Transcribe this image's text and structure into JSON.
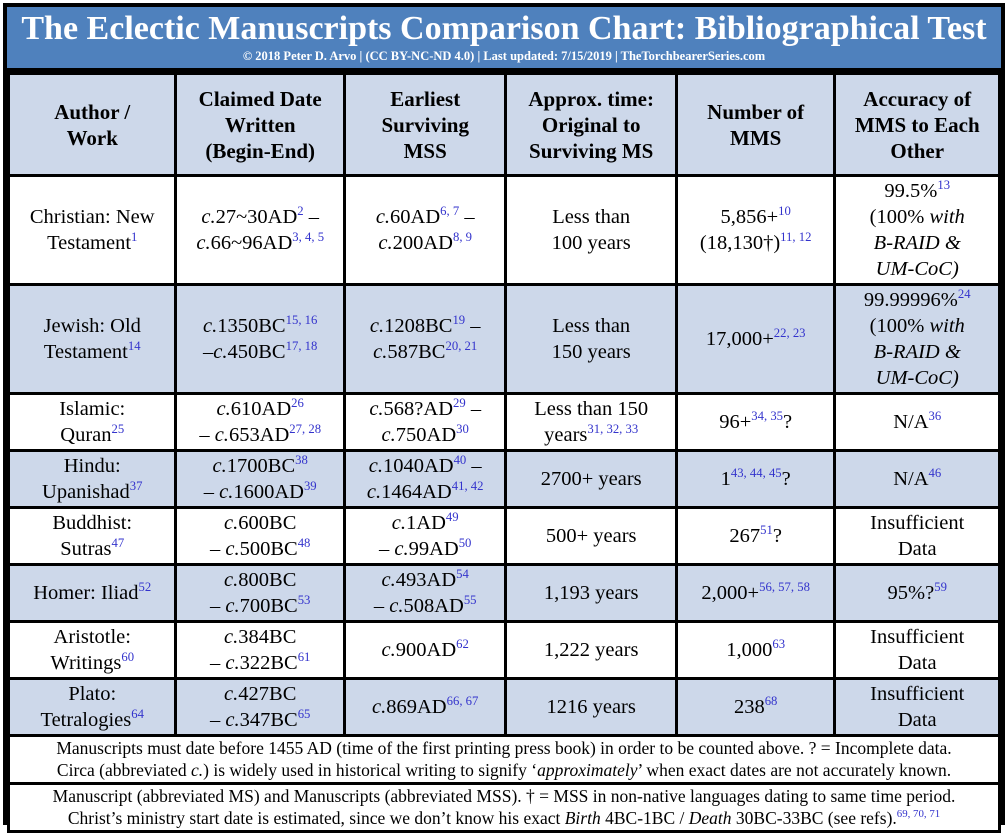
{
  "title": "The Eclectic Manuscripts Comparison Chart: Bibliographical Test",
  "subtitle": "© 2018 Peter D. Arvo | (CC BY-NC-ND 4.0) | Last updated: 7/15/2019 | TheTorchbearerSeries.com",
  "colors": {
    "title_bar_blue": "#4f81bd",
    "row_shade_blue": "#cdd8ea",
    "footnote_ref_blue": "#3333cc",
    "border_black": "#000000"
  },
  "table": {
    "headers_html": [
      "Author /<br>Work",
      "Claimed Date<br>Written<br>(Begin-End)",
      "Earliest<br>Surviving<br>MSS",
      "Approx. time:<br>Original to<br>Surviving MS",
      "Number of<br>MMS",
      "Accuracy of<br>MMS to Each<br>Other"
    ],
    "shaded_rows": [
      1,
      3,
      5,
      7
    ],
    "rows_html": [
      [
        "Christian: New<br>Testament<sup>1</sup>",
        "<i>c.</i>27~30AD<sup>2</sup> –<br><i>c.</i>66~96AD<sup>3, 4, 5</sup>",
        "<i>c.</i>60AD<sup>6, 7</sup> –<br><i>c.</i>200AD<sup>8, 9</sup>",
        "Less than<br>100 years",
        "5,856+<sup>10</sup><br>(18,130†)<sup>11, 12</sup>",
        "99.5%<sup>13</sup><br>(100% <i>with<br>B-RAID &amp;<br>UM-CoC)</i>"
      ],
      [
        "Jewish: Old<br>Testament<sup>14</sup>",
        "<i>c.</i>1350BC<sup>15, 16</sup><br>–<i>c.</i>450BC<sup>17, 18</sup>",
        "<i>c.</i>1208BC<sup>19</sup> –<br><i>c.</i>587BC<sup>20, 21</sup>",
        "Less than<br>150 years",
        "17,000+<sup>22, 23</sup>",
        "99.99996%<sup>24</sup><br>(100% <i>with<br>B-RAID &amp;<br>UM-CoC)</i>"
      ],
      [
        "Islamic:<br>Quran<sup>25</sup>",
        "<i>c.</i>610AD<sup>26</sup><br>– <i>c.</i>653AD<sup>27, 28</sup>",
        "<i>c.</i>568?AD<sup>29</sup> –<br><i>c.</i>750AD<sup>30</sup>",
        "Less than 150<br>years<sup>31, 32, 33</sup>",
        "96+<sup>34, 35</sup>?",
        "N/A<sup>36</sup>"
      ],
      [
        "Hindu:<br>Upanishad<sup>37</sup>",
        "<i>c.</i>1700BC<sup>38</sup><br>– <i>c.</i>1600AD<sup>39</sup>",
        "<i>c.</i>1040AD<sup>40</sup> –<br><i>c.</i>1464AD<sup>41, 42</sup>",
        "2700+ years",
        "1<sup>43, 44, 45</sup>?",
        "N/A<sup>46</sup>"
      ],
      [
        "Buddhist:<br>Sutras<sup>47</sup>",
        "<i>c.</i>600BC<br>– <i>c.</i>500BC<sup>48</sup>",
        "<i>c.</i>1AD<sup>49</sup><br>– <i>c.</i>99AD<sup>50</sup>",
        "500+ years",
        "267<sup>51</sup>?",
        "Insufficient<br>Data"
      ],
      [
        "Homer: Iliad<sup>52</sup>",
        "<i>c.</i>800BC<br>– <i>c.</i>700BC<sup>53</sup>",
        "<i>c.</i>493AD<sup>54</sup><br>– <i>c.</i>508AD<sup>55</sup>",
        "1,193 years",
        "2,000+<sup>56, 57, 58</sup>",
        "95%?<sup>59</sup>"
      ],
      [
        "Aristotle:<br>Writings<sup>60</sup>",
        "<i>c.</i>384BC<br>– <i>c.</i>322BC<sup>61</sup>",
        "<i>c.</i>900AD<sup>62</sup>",
        "1,222 years",
        "1,000<sup>63</sup>",
        "Insufficient<br>Data"
      ],
      [
        "Plato:<br>Tetralogies<sup>64</sup>",
        "<i>c.</i>427BC<br>– <i>c.</i>347BC<sup>65</sup>",
        "<i>c.</i>869AD<sup>66, 67</sup>",
        "1216 years",
        "238<sup>68</sup>",
        "Insufficient<br>Data"
      ]
    ]
  },
  "footer": {
    "lines_html": [
      "Manuscripts must date before 1455 AD (time of the first printing press book) in order to be counted above. ? = Incomplete data.",
      "Circa (abbreviated <i>c.</i>) is widely used in historical writing to signify ‘<i>approximately</i>’ when exact dates are not accurately known.",
      "Manuscript (abbreviated MS) and Manuscripts (abbreviated MSS). † = MSS in non-native languages dating to same time period.",
      "Christ’s ministry start date is estimated, since we don’t know his exact <i>Birth</i> 4BC-1BC / <i>Death</i> 30BC-33BC (see refs).<sup>69, 70, 71</sup>"
    ]
  },
  "chart_data": {
    "type": "table",
    "title": "The Eclectic Manuscripts Comparison Chart: Bibliographical Test",
    "subtitle": "© 2018 Peter D. Arvo | (CC BY-NC-ND 4.0) | Last updated: 7/15/2019 | TheTorchbearerSeries.com",
    "columns": [
      "Author / Work",
      "Claimed Date Written (Begin-End)",
      "Earliest Surviving MSS",
      "Approx. time: Original to Surviving MS",
      "Number of MMS",
      "Accuracy of MMS to Each Other"
    ],
    "rows": [
      [
        "Christian: New Testament^1",
        "c.27~30AD^2 – c.66~96AD^3,4,5",
        "c.60AD^6,7 – c.200AD^8,9",
        "Less than 100 years",
        "5,856+^10 (18,130†)^11,12",
        "99.5%^13 (100% with B-RAID & UM-CoC)"
      ],
      [
        "Jewish: Old Testament^14",
        "c.1350BC^15,16 – c.450BC^17,18",
        "c.1208BC^19 – c.587BC^20,21",
        "Less than 150 years",
        "17,000+^22,23",
        "99.99996%^24 (100% with B-RAID & UM-CoC)"
      ],
      [
        "Islamic: Quran^25",
        "c.610AD^26 – c.653AD^27,28",
        "c.568?AD^29 – c.750AD^30",
        "Less than 150 years^31,32,33",
        "96+^34,35 ?",
        "N/A^36"
      ],
      [
        "Hindu: Upanishad^37",
        "c.1700BC^38 – c.1600AD^39",
        "c.1040AD^40 – c.1464AD^41,42",
        "2700+ years",
        "1^43,44,45 ?",
        "N/A^46"
      ],
      [
        "Buddhist: Sutras^47",
        "c.600BC – c.500BC^48",
        "c.1AD^49 – c.99AD^50",
        "500+ years",
        "267^51 ?",
        "Insufficient Data"
      ],
      [
        "Homer: Iliad^52",
        "c.800BC – c.700BC^53",
        "c.493AD^54 – c.508AD^55",
        "1,193 years",
        "2,000+^56,57,58",
        "95%?^59"
      ],
      [
        "Aristotle: Writings^60",
        "c.384BC – c.322BC^61",
        "c.900AD^62",
        "1,222 years",
        "1,000^63",
        "Insufficient Data"
      ],
      [
        "Plato: Tetralogies^64",
        "c.427BC – c.347BC^65",
        "c.869AD^66,67",
        "1216 years",
        "238^68",
        "Insufficient Data"
      ]
    ],
    "notes": [
      "Manuscripts must date before 1455 AD (time of the first printing press book) in order to be counted above. ? = Incomplete data.",
      "Circa (abbreviated c.) is widely used in historical writing to signify ‘approximately’ when exact dates are not accurately known.",
      "Manuscript (abbreviated MS) and Manuscripts (abbreviated MSS). † = MSS in non-native languages dating to same time period.",
      "Christ’s ministry start date is estimated, since we don’t know his exact Birth 4BC-1BC / Death 30BC-33BC (see refs).^69,70,71"
    ]
  }
}
